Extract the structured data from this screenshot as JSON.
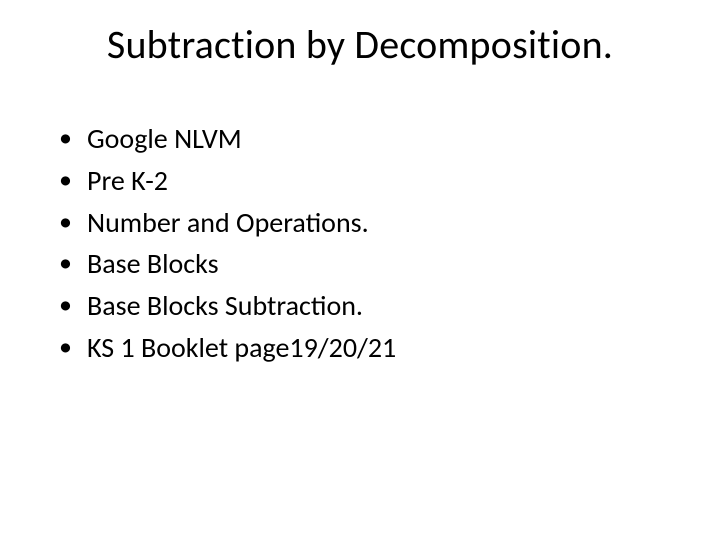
{
  "slide": {
    "title": "Subtraction by Decomposition.",
    "title_fontsize": 40,
    "body_fontsize": 28,
    "text_color": "#000000",
    "background_color": "#ffffff",
    "bullets": [
      "Google NLVM",
      "Pre K-2",
      "Number and Operations.",
      "Base Blocks",
      "Base Blocks Subtraction.",
      "KS 1 Booklet page19/20/21"
    ]
  }
}
